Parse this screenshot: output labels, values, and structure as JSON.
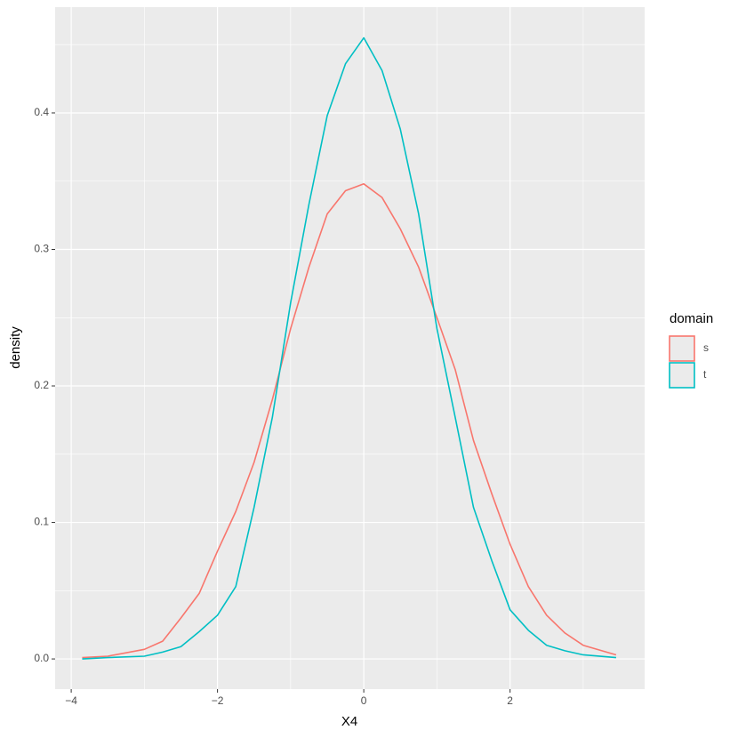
{
  "chart_data": {
    "type": "line",
    "x_label": "X4",
    "y_label": "density",
    "legend_title": "domain",
    "legend_position": "right",
    "grid": true,
    "x": [
      -3.85,
      -3.5,
      -3,
      -2.75,
      -2.5,
      -2.25,
      -2,
      -1.75,
      -1.5,
      -1.25,
      -1,
      -0.75,
      -0.5,
      -0.25,
      0,
      0.25,
      0.5,
      0.75,
      1,
      1.25,
      1.5,
      1.75,
      2,
      2.25,
      2.5,
      2.75,
      3,
      3.45
    ],
    "series": [
      {
        "name": "s",
        "color": "#F8766D",
        "values": [
          0.001,
          0.002,
          0.007,
          0.013,
          0.03,
          0.048,
          0.079,
          0.108,
          0.144,
          0.19,
          0.242,
          0.287,
          0.326,
          0.343,
          0.348,
          0.338,
          0.315,
          0.287,
          0.25,
          0.212,
          0.16,
          0.121,
          0.084,
          0.053,
          0.032,
          0.019,
          0.01,
          0.003
        ]
      },
      {
        "name": "t",
        "color": "#00BFC4",
        "values": [
          0.0,
          0.001,
          0.002,
          0.005,
          0.009,
          0.02,
          0.032,
          0.053,
          0.111,
          0.177,
          0.261,
          0.333,
          0.398,
          0.436,
          0.455,
          0.431,
          0.388,
          0.326,
          0.242,
          0.177,
          0.111,
          0.072,
          0.036,
          0.021,
          0.01,
          0.006,
          0.003,
          0.001
        ]
      }
    ],
    "xlim": [
      -4.22,
      3.84
    ],
    "ylim": [
      -0.0221,
      0.4775
    ],
    "xticks": [
      {
        "value": -4,
        "label": "−4"
      },
      {
        "value": -2,
        "label": "−2"
      },
      {
        "value": 0,
        "label": "0"
      },
      {
        "value": 2,
        "label": "2"
      }
    ],
    "yticks": [
      {
        "value": 0,
        "label": "0.0"
      },
      0.1,
      0.2,
      0.3,
      0.4
    ],
    "xminor": [
      -3,
      -1,
      1,
      3
    ],
    "yminor": [
      0.05,
      0.15,
      0.25,
      0.35,
      0.45
    ]
  }
}
